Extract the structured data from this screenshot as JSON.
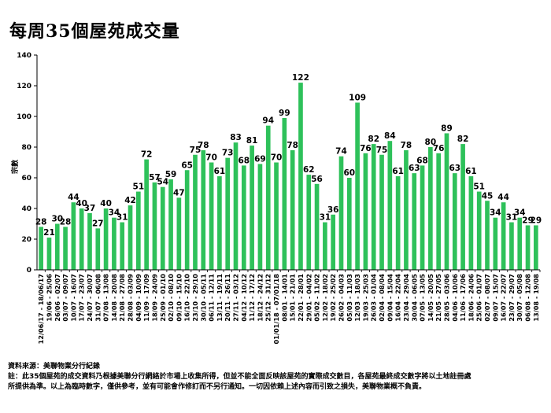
{
  "page": {
    "title": "每周35個屋苑成交量",
    "source": "資料來源：美聯物業分行紀錄",
    "note_line1": "註：此35個屋苑的成交資料乃根據美聯分行網絡於市場上收集所得，但並不能全面反映該屋苑的實際成交數目，各屋苑最終成交數字將以土地註冊處",
    "note_line2": "所提供為準。以上為臨時數字，僅供參考，並有可能會作修訂而不另行通知。一切因依賴上述內容而引致之損失，美聯物業概不負責。"
  },
  "chart_data": {
    "type": "bar",
    "title": "每周35個屋苑成交量",
    "ylabel": "宗數",
    "xlabel": "",
    "ylim": [
      0,
      140
    ],
    "yticks": [
      0,
      20,
      40,
      60,
      80,
      100,
      120,
      140
    ],
    "grid": false,
    "colors": {
      "bar": "#2ec15a",
      "text": "#000000"
    },
    "categories": [
      "12/06/17 - 18/06/17",
      "19/06 - 25/06",
      "26/06 - 02/07",
      "03/07 - 09/07",
      "10/07 - 16/07",
      "17/07 - 23/07",
      "24/07 - 30/07",
      "31/07 - 06/08",
      "07/08 - 13/08",
      "14/08 - 20/08",
      "21/08 - 27/08",
      "28/08 - 03/09",
      "04/09 - 10/09",
      "11/09 - 17/09",
      "18/09 - 24/09",
      "25/09 - 01/10",
      "02/10 - 08/10",
      "09/10 - 15/10",
      "16/10 - 22/10",
      "23/10 - 29/10",
      "30/10 - 05/11",
      "06/11 - 12/11",
      "13/11 - 19/11",
      "20/11 - 26/11",
      "27/11 - 03/12",
      "04/12 - 10/12",
      "11/12 - 17/12",
      "18/12 - 24/12",
      "25/12 - 31/12",
      "01/01/18 - 07/01/18",
      "08/01 - 14/01",
      "15/01 - 21/01",
      "22/01 - 28/01",
      "29/01 - 04/02",
      "05/02 - 11/02",
      "12/02 - 18/02",
      "19/02 - 25/02",
      "26/02 - 04/03",
      "05/03 - 11/03",
      "12/03 - 18/03",
      "19/03 - 25/03",
      "26/03 - 01/04",
      "02/04 - 08/04",
      "09/04 - 15/04",
      "16/04 - 22/04",
      "23/04 - 29/04",
      "30/04 - 06/05",
      "07/05 - 13/05",
      "14/05 - 20/05",
      "21/05 - 27/05",
      "28/05 - 03/06",
      "04/06 - 10/06",
      "11/06 - 17/06",
      "18/06 - 24/06",
      "25/06 - 01/07",
      "02/07 - 08/07",
      "09/07 - 15/07",
      "16/07 - 22/07",
      "23/07 - 29/07",
      "30/07 - 05/08",
      "06/08 - 12/08",
      "13/08 - 19/08"
    ],
    "values": [
      28,
      21,
      30,
      28,
      44,
      40,
      37,
      27,
      40,
      34,
      31,
      42,
      51,
      72,
      57,
      54,
      59,
      47,
      65,
      75,
      78,
      70,
      61,
      73,
      83,
      68,
      81,
      69,
      94,
      70,
      99,
      78,
      122,
      62,
      56,
      31,
      36,
      74,
      60,
      109,
      76,
      82,
      75,
      84,
      61,
      78,
      63,
      68,
      80,
      76,
      89,
      63,
      82,
      61,
      51,
      45,
      34,
      44,
      31,
      34,
      29,
      29
    ],
    "value_labels": [
      "28",
      "21",
      "30",
      "28",
      "44",
      "40",
      "37",
      "27",
      "40",
      "34",
      "31",
      "42",
      "51",
      "72",
      "57",
      "54",
      "59",
      "47",
      "65",
      "75",
      "78",
      "70",
      "61",
      "73",
      "83",
      "68",
      "81",
      "69",
      "94",
      "70",
      "99",
      "78",
      "122",
      "62",
      "56",
      "31",
      "36",
      "74",
      "60",
      "109",
      "76",
      "82",
      "75",
      "84",
      "61",
      "78",
      "63",
      "68",
      "80",
      "76",
      "89",
      "63",
      "82",
      "61",
      "51",
      "45",
      "34",
      "44",
      "31",
      "34",
      "29",
      "29"
    ]
  }
}
